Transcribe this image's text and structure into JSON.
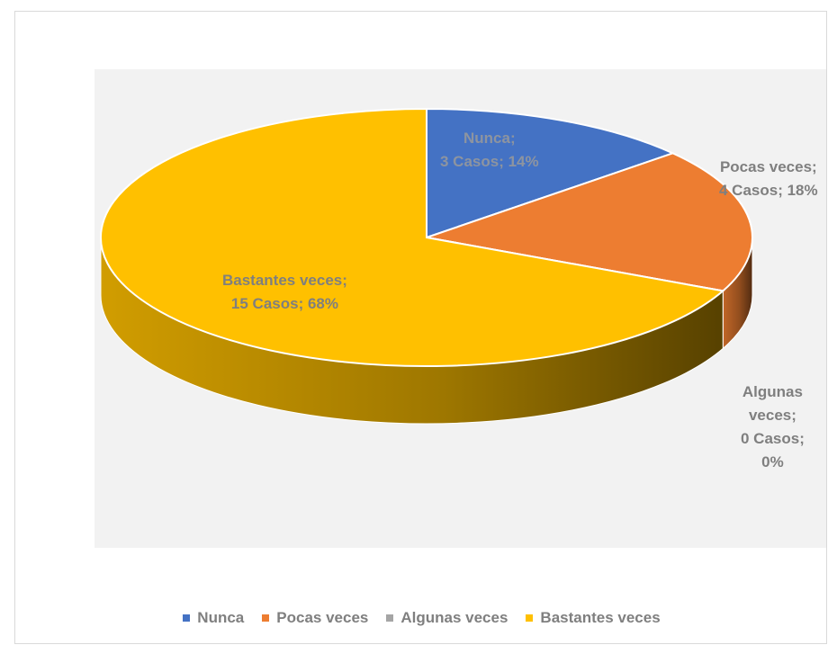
{
  "chart_data": {
    "type": "pie",
    "categories": [
      "Nunca",
      "Pocas veces",
      "Algunas veces",
      "Bastantes veces"
    ],
    "values": [
      3,
      4,
      0,
      15
    ],
    "percent": [
      14,
      18,
      0,
      68
    ],
    "colors": [
      "#4472c4",
      "#ed7d31",
      "#a5a5a5",
      "#ffc000"
    ],
    "legend_position": "bottom",
    "data_labels": [
      {
        "line1": "Nunca;",
        "line2": "3 Casos; 14%"
      },
      {
        "line1": "Pocas veces;",
        "line2": "4 Casos; 18%"
      },
      {
        "line1": "Algunas",
        "line2": "veces;",
        "line3": "0 Casos;",
        "line4": "0%"
      },
      {
        "line1": "Bastantes veces;",
        "line2": "15 Casos; 68%"
      }
    ]
  }
}
